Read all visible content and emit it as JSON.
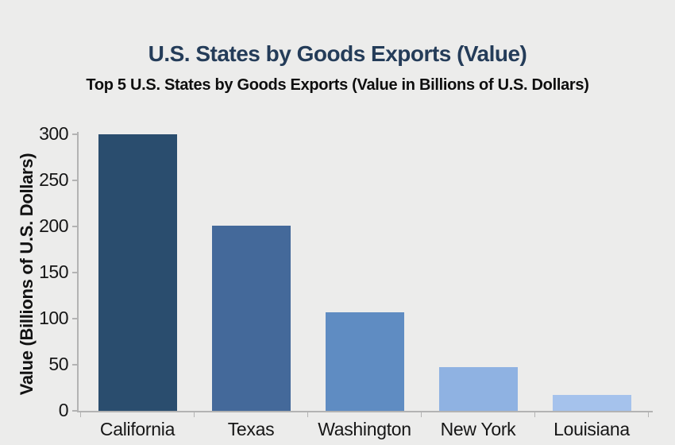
{
  "chart_data": {
    "type": "bar",
    "title": "U.S. States by Goods Exports (Value)",
    "subtitle": "Top 5 U.S. States by Goods Exports (Value in Billions of U.S. Dollars)",
    "categories": [
      "California",
      "Texas",
      "Washington",
      "New York",
      "Louisiana"
    ],
    "values": [
      300,
      201,
      107,
      47,
      17
    ],
    "bar_colors": [
      "#2a4d6e",
      "#44699a",
      "#5f8cc2",
      "#8fb2e2",
      "#a5c2ec"
    ],
    "xlabel": "",
    "ylabel": "Value (Billions of U.S. Dollars)",
    "ylim": [
      0,
      300
    ],
    "yticks": [
      0,
      50,
      100,
      150,
      200,
      250,
      300
    ],
    "grid": false,
    "legend": "none",
    "orientation": "vertical"
  },
  "colors": {
    "background": "#ececeb",
    "title_text": "#243c59",
    "subtitle_text": "#0e0e0e",
    "tick_text": "#161616",
    "axis_line": "#b3b3b3"
  }
}
